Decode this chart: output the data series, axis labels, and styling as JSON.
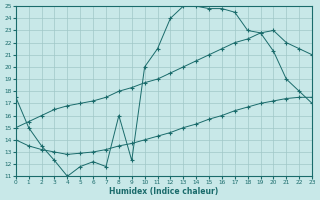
{
  "xlabel": "Humidex (Indice chaleur)",
  "x": [
    0,
    1,
    2,
    3,
    4,
    5,
    6,
    7,
    8,
    9,
    10,
    11,
    12,
    13,
    14,
    15,
    16,
    17,
    18,
    19,
    20,
    21,
    22,
    23
  ],
  "y_top": [
    17.5,
    15.0,
    13.5,
    12.3,
    11.0,
    11.8,
    12.2,
    11.8,
    16.0,
    12.3,
    20.0,
    21.5,
    24.0,
    25.0,
    25.0,
    24.8,
    24.8,
    24.5,
    23.0,
    22.8,
    21.3,
    19.0,
    18.0,
    17.0
  ],
  "y_mid": [
    15.0,
    15.5,
    16.0,
    16.5,
    16.8,
    17.0,
    17.2,
    17.5,
    18.0,
    18.3,
    18.7,
    19.0,
    19.5,
    20.0,
    20.5,
    21.0,
    21.5,
    22.0,
    22.3,
    22.8,
    23.0,
    22.0,
    21.5,
    21.0
  ],
  "y_bot": [
    14.0,
    13.5,
    13.2,
    13.0,
    12.8,
    12.9,
    13.0,
    13.2,
    13.5,
    13.7,
    14.0,
    14.3,
    14.6,
    15.0,
    15.3,
    15.7,
    16.0,
    16.4,
    16.7,
    17.0,
    17.2,
    17.4,
    17.5,
    17.5
  ],
  "line_color": "#1a6b6b",
  "bg_color": "#c8e8e8",
  "grid_color": "#a0c8c8",
  "ylim": [
    11,
    25
  ],
  "xlim": [
    0,
    23
  ]
}
